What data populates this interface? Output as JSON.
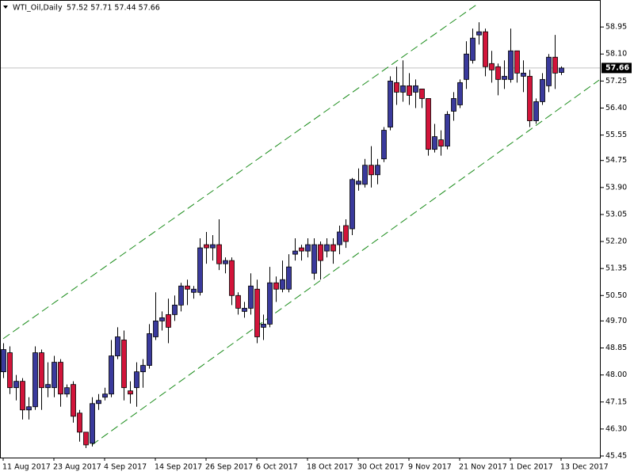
{
  "chart_data": {
    "type": "candlestick",
    "title": "WTI_Oil,Daily",
    "ohlc_label": "57.52 57.71 57.44 57.66",
    "categories": [
      "11 Aug 2017",
      null,
      null,
      null,
      null,
      null,
      null,
      null,
      "23 Aug 2017",
      null,
      null,
      null,
      null,
      null,
      null,
      null,
      "4 Sep 2017",
      null,
      null,
      null,
      null,
      null,
      null,
      null,
      "14 Sep 2017",
      null,
      null,
      null,
      null,
      null,
      null,
      null,
      "26 Sep 2017",
      null,
      null,
      null,
      null,
      null,
      null,
      null,
      "6 Oct 2017",
      null,
      null,
      null,
      null,
      null,
      null,
      null,
      "18 Oct 2017",
      null,
      null,
      null,
      null,
      null,
      null,
      null,
      "30 Oct 2017",
      null,
      null,
      null,
      null,
      null,
      null,
      null,
      "9 Nov 2017",
      null,
      null,
      null,
      null,
      null,
      null,
      null,
      "21 Nov 2017",
      null,
      null,
      null,
      null,
      null,
      null,
      null,
      "1 Dec 2017",
      null,
      null,
      null,
      null,
      null,
      null,
      null,
      "13 Dec 2017"
    ],
    "open": [
      48.1,
      48.7,
      47.6,
      47.8,
      46.9,
      47.0,
      48.7,
      47.6,
      47.6,
      48.4,
      47.4,
      47.7,
      46.8,
      46.2,
      45.85,
      47.1,
      47.3,
      47.4,
      48.6,
      49.1,
      47.5,
      47.6,
      48.1,
      48.3,
      49.2,
      49.7,
      49.9,
      49.9,
      50.2,
      50.8,
      50.6,
      50.6,
      52.1,
      52.0,
      52.1,
      51.5,
      51.6,
      50.5,
      50.0,
      50.1,
      50.7,
      49.5,
      49.6,
      50.9,
      50.7,
      50.7,
      51.8,
      52.0,
      51.9,
      51.2,
      52.1,
      51.9,
      52.1,
      52.1,
      52.7,
      52.6,
      54.0,
      54.0,
      54.6,
      54.3,
      54.8,
      55.8,
      57.2,
      56.9,
      57.1,
      56.9,
      57.0,
      56.7,
      55.1,
      55.4,
      55.2,
      56.3,
      56.5,
      57.3,
      57.9,
      58.7,
      58.8,
      57.8,
      57.7,
      57.3,
      57.3,
      58.2,
      57.4,
      57.4,
      56.0,
      56.6,
      57.1,
      58.0,
      57.52
    ],
    "high": [
      49.0,
      48.9,
      48.0,
      47.9,
      47.3,
      48.9,
      48.8,
      48.4,
      48.6,
      48.5,
      47.7,
      47.8,
      46.9,
      46.2,
      47.3,
      47.4,
      47.6,
      49.1,
      49.5,
      49.4,
      47.8,
      48.4,
      48.5,
      49.6,
      50.6,
      50.0,
      50.4,
      50.5,
      50.9,
      51.0,
      50.8,
      52.3,
      52.5,
      52.4,
      52.9,
      51.7,
      51.7,
      50.6,
      50.3,
      51.2,
      51.0,
      49.9,
      51.4,
      51.1,
      51.6,
      51.8,
      52.3,
      52.1,
      52.3,
      52.3,
      52.2,
      52.3,
      52.3,
      52.7,
      52.9,
      54.2,
      54.5,
      54.8,
      55.2,
      54.8,
      55.8,
      57.4,
      57.7,
      57.9,
      57.5,
      57.3,
      57.0,
      56.7,
      55.9,
      55.7,
      56.3,
      56.9,
      57.3,
      58.5,
      58.9,
      59.1,
      58.9,
      58.2,
      57.8,
      57.9,
      58.9,
      58.2,
      57.9,
      57.6,
      56.7,
      57.5,
      58.1,
      58.7,
      57.71
    ],
    "low": [
      47.9,
      47.4,
      47.2,
      46.6,
      46.6,
      46.9,
      46.9,
      47.3,
      47.3,
      47.0,
      47.3,
      46.5,
      45.9,
      45.7,
      45.75,
      46.9,
      47.2,
      47.3,
      48.5,
      47.2,
      47.1,
      47.0,
      47.6,
      48.2,
      49.1,
      49.4,
      49.0,
      49.7,
      50.0,
      50.2,
      50.4,
      50.5,
      51.5,
      51.6,
      51.3,
      51.2,
      50.2,
      49.9,
      49.8,
      49.9,
      49.0,
      49.1,
      49.5,
      50.3,
      50.6,
      50.6,
      51.6,
      51.6,
      51.7,
      51.0,
      51.0,
      51.7,
      51.5,
      51.8,
      52.0,
      52.4,
      53.8,
      53.9,
      53.9,
      54.0,
      54.7,
      55.7,
      56.5,
      56.6,
      56.5,
      56.4,
      56.4,
      54.9,
      55.0,
      54.9,
      55.1,
      56.0,
      56.4,
      57.0,
      57.8,
      58.4,
      57.4,
      57.2,
      56.8,
      57.0,
      57.2,
      57.2,
      56.9,
      55.8,
      55.9,
      56.5,
      56.9,
      57.0,
      57.44
    ],
    "close": [
      48.8,
      47.6,
      47.8,
      46.9,
      47.0,
      48.7,
      47.6,
      47.7,
      48.4,
      47.4,
      47.6,
      46.7,
      46.2,
      45.8,
      47.1,
      47.2,
      47.4,
      48.6,
      49.2,
      47.6,
      47.4,
      48.1,
      48.3,
      49.3,
      49.7,
      49.8,
      49.5,
      50.2,
      50.8,
      50.7,
      50.7,
      52.0,
      52.0,
      52.1,
      51.5,
      51.6,
      50.5,
      50.1,
      50.1,
      50.8,
      49.2,
      49.6,
      50.9,
      50.7,
      51.0,
      51.4,
      51.9,
      51.9,
      52.1,
      52.1,
      51.6,
      52.1,
      51.9,
      52.5,
      52.2,
      54.15,
      54.1,
      54.6,
      54.3,
      54.6,
      55.7,
      57.25,
      56.9,
      57.1,
      56.8,
      57.1,
      56.7,
      55.1,
      55.5,
      55.2,
      56.2,
      56.7,
      57.2,
      58.1,
      58.6,
      58.8,
      57.7,
      57.6,
      57.3,
      57.4,
      58.2,
      57.5,
      57.5,
      56.0,
      56.6,
      57.3,
      58.0,
      57.5,
      57.66
    ],
    "up_color": "#3a3a9c",
    "down_color": "#d2143a",
    "current_price": 57.66,
    "channel_color": "#1a8c1a",
    "channel_lines": [
      {
        "x": [
          0,
          75
        ],
        "y": [
          49.14,
          59.7
        ]
      },
      {
        "x": [
          14,
          94
        ],
        "y": [
          45.8,
          57.28
        ]
      }
    ],
    "ylim": [
      45.4,
      59.8
    ],
    "yticks": [
      45.45,
      {
        "value": 46.3,
        "label": "46.30"
      },
      47.15,
      {
        "value": 48,
        "label": "48.00"
      },
      48.85,
      {
        "value": 49.7,
        "label": "49.70"
      },
      {
        "value": 50.5,
        "label": "50.50"
      },
      51.35,
      {
        "value": 52.2,
        "label": "52.20"
      },
      53.05,
      {
        "value": 53.9,
        "label": "53.90"
      },
      54.75,
      55.55,
      {
        "value": 56.4,
        "label": "56.40"
      },
      57.25,
      {
        "value": 58.1,
        "label": "58.10"
      },
      58.95
    ]
  }
}
